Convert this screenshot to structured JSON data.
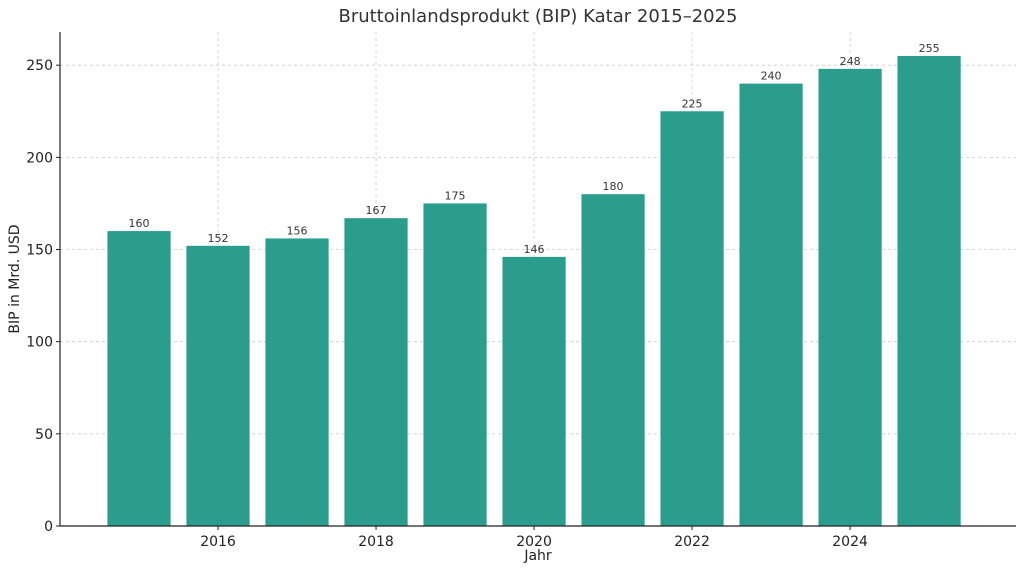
{
  "chart_data": {
    "type": "bar",
    "title": "Bruttoinlandsprodukt (BIP) Katar 2015–2025",
    "xlabel": "Jahr",
    "ylabel": "BIP in Mrd. USD",
    "categories": [
      2015,
      2016,
      2017,
      2018,
      2019,
      2020,
      2021,
      2022,
      2023,
      2024,
      2025
    ],
    "values": [
      160,
      152,
      156,
      167,
      175,
      146,
      180,
      225,
      240,
      248,
      255
    ],
    "value_labels": [
      "160",
      "152",
      "156",
      "167",
      "175",
      "146",
      "180",
      "225",
      "240",
      "248",
      "255"
    ],
    "xticks": [
      2016,
      2018,
      2020,
      2022,
      2024
    ],
    "xtick_labels": [
      "2016",
      "2018",
      "2020",
      "2022",
      "2024"
    ],
    "yticks": [
      0,
      50,
      100,
      150,
      200,
      250
    ],
    "ytick_labels": [
      "0",
      "50",
      "100",
      "150",
      "200",
      "250"
    ],
    "xlim": [
      2014.0,
      2026.1
    ],
    "ylim": [
      0,
      268
    ],
    "grid": true,
    "bar_color": "#2a9d8c",
    "legend": null
  }
}
